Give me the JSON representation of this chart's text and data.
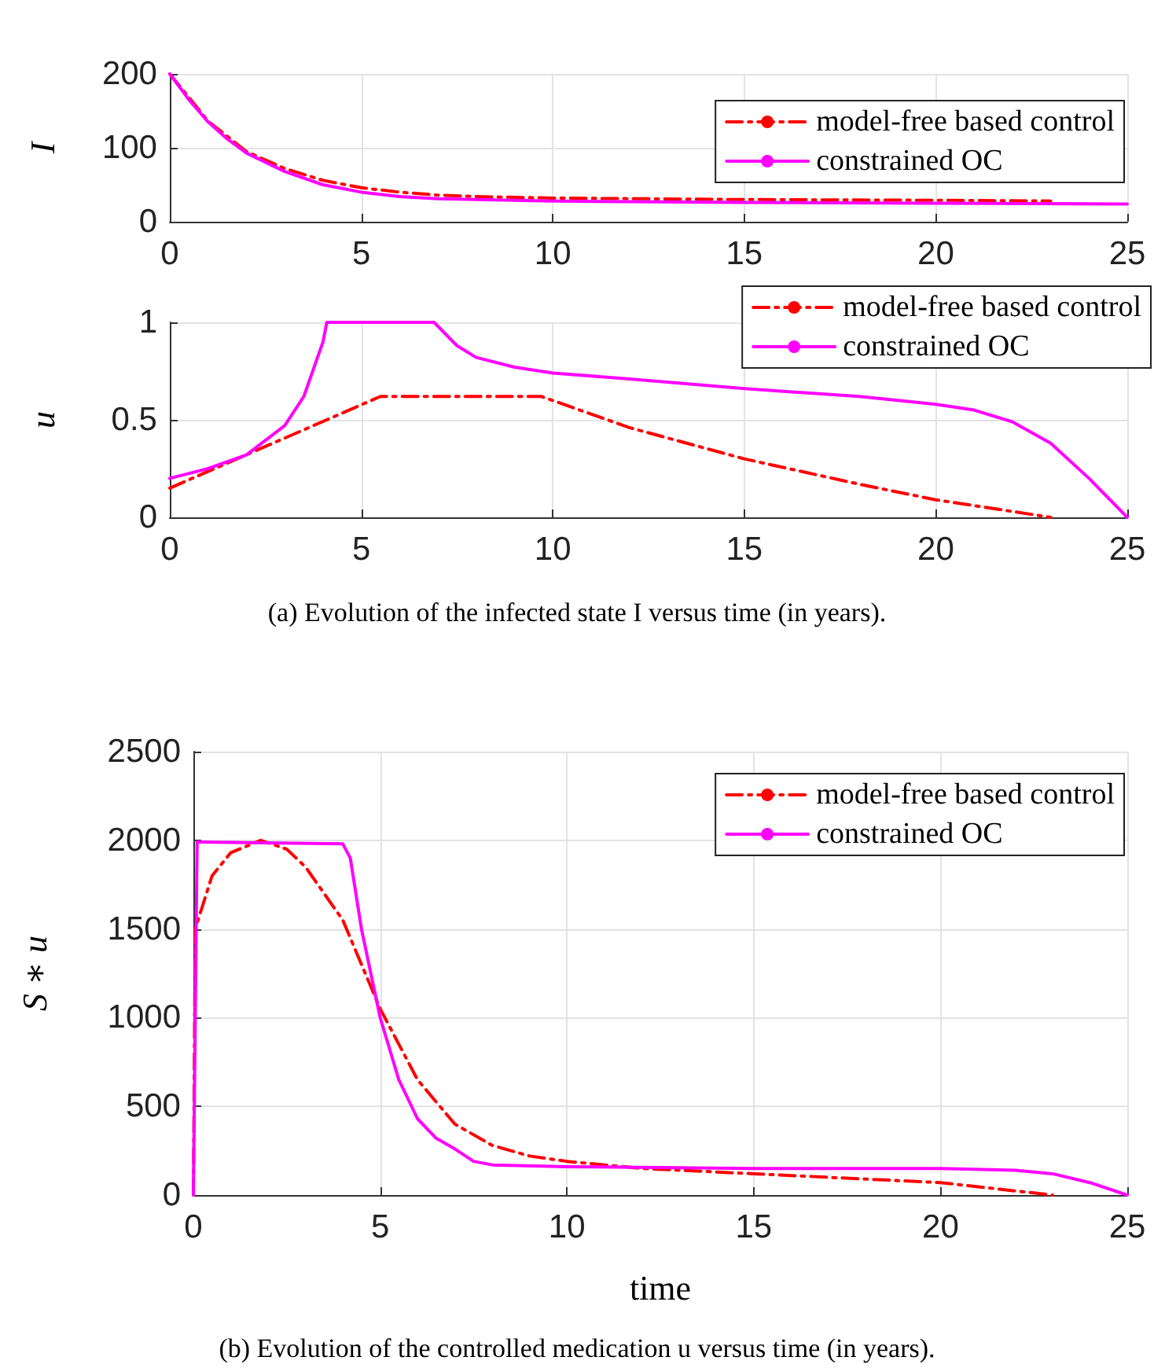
{
  "chart_data": [
    {
      "type": "line",
      "ylabel": "I",
      "xlim": [
        0,
        25
      ],
      "xticks": [
        0,
        5,
        10,
        15,
        20,
        25
      ],
      "ylim": [
        0,
        200
      ],
      "yticks": [
        0,
        100,
        200
      ],
      "grid": true,
      "legend": "top right",
      "marker": "none",
      "series": [
        {
          "name": "model-free based control",
          "color": "#ff0000",
          "line_style": "dashed",
          "x": [
            0,
            1,
            2,
            3,
            4,
            5,
            6,
            7,
            8,
            10,
            15,
            20,
            23
          ],
          "values": [
            200,
            136,
            95,
            72,
            56,
            46,
            40,
            36,
            34,
            32,
            30,
            29,
            28
          ]
        },
        {
          "name": "constrained OC",
          "color": "#ff00ff",
          "line_style": "solid",
          "x": [
            0,
            0.5,
            1,
            1.5,
            2,
            3,
            4,
            5,
            6,
            7,
            8,
            10,
            15,
            20,
            25
          ],
          "values": [
            200,
            165,
            135,
            112,
            93,
            68,
            50,
            40,
            34,
            31,
            30,
            28,
            26,
            25,
            24
          ]
        }
      ]
    },
    {
      "type": "line",
      "ylabel": "u",
      "xlim": [
        0,
        25
      ],
      "xticks": [
        0,
        5,
        10,
        15,
        20,
        25
      ],
      "ylim": [
        0,
        1
      ],
      "yticks": [
        0,
        0.5,
        1
      ],
      "grid": true,
      "legend": "top right",
      "marker": "none",
      "annotations": [
        "(a) Evolution of the infected state I versus time (in years)."
      ],
      "series": [
        {
          "name": "model-free based control",
          "color": "#ff0000",
          "line_style": "dashed",
          "x": [
            0,
            5.5,
            9.7,
            12,
            15,
            18,
            20,
            23
          ],
          "values": [
            0.15,
            0.62,
            0.62,
            0.46,
            0.3,
            0.17,
            0.09,
            0
          ]
        },
        {
          "name": "constrained OC",
          "color": "#ff00ff",
          "line_style": "solid",
          "x": [
            0,
            1,
            2,
            3,
            3.5,
            4,
            4.1,
            6.9,
            7.5,
            8,
            9,
            10,
            12,
            15,
            18,
            20,
            21,
            22,
            23,
            24,
            25
          ],
          "values": [
            0.2,
            0.25,
            0.32,
            0.47,
            0.62,
            0.9,
            1,
            1,
            0.88,
            0.82,
            0.77,
            0.74,
            0.71,
            0.66,
            0.62,
            0.58,
            0.55,
            0.49,
            0.38,
            0.2,
            0
          ]
        }
      ]
    },
    {
      "type": "line",
      "xlabel": "time",
      "ylabel": "S ∗ u",
      "xlim": [
        0,
        25
      ],
      "xticks": [
        0,
        5,
        10,
        15,
        20,
        25
      ],
      "ylim": [
        0,
        2500
      ],
      "yticks": [
        0,
        500,
        1000,
        1500,
        2000,
        2500
      ],
      "grid": true,
      "legend": "top right",
      "marker": "none",
      "annotations": [
        "(b) Evolution of the controlled medication u versus time (in years)."
      ],
      "series": [
        {
          "name": "model-free based control",
          "color": "#ff0000",
          "line_style": "dashed",
          "x": [
            0,
            0.05,
            0.5,
            1,
            1.8,
            2.5,
            3,
            4,
            5,
            6,
            7,
            8,
            9,
            10,
            12,
            15,
            18,
            20,
            23
          ],
          "values": [
            0,
            1500,
            1800,
            1930,
            2000,
            1950,
            1850,
            1550,
            1050,
            650,
            400,
            280,
            220,
            190,
            150,
            120,
            90,
            70,
            0
          ]
        },
        {
          "name": "constrained OC",
          "color": "#ff00ff",
          "line_style": "solid",
          "x": [
            0,
            0.1,
            4,
            4.2,
            4.5,
            5,
            5.5,
            6,
            6.5,
            7,
            7.5,
            8,
            10,
            15,
            20,
            22,
            23,
            24,
            25
          ],
          "values": [
            0,
            1990,
            1980,
            1900,
            1500,
            1000,
            650,
            430,
            320,
            260,
            190,
            170,
            160,
            150,
            150,
            140,
            120,
            70,
            0
          ]
        }
      ]
    }
  ]
}
